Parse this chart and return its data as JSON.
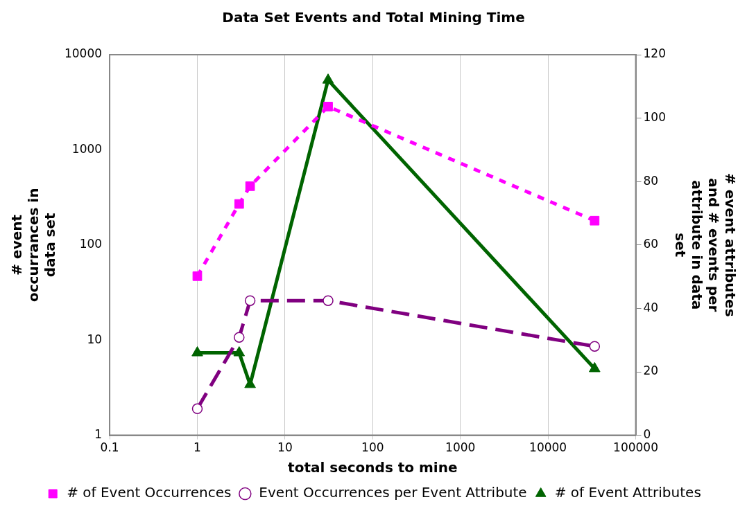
{
  "chart_data": {
    "type": "line",
    "title": "Data Set Events and Total Mining Time",
    "xlabel": "total seconds to mine",
    "ylabel": "# event occurrances in data set",
    "y2label": "# event attributes and # events per attribute in data set",
    "log": "xy",
    "xlim": [
      0.1,
      100000
    ],
    "xticks": [
      0.1,
      1,
      10,
      100,
      1000,
      10000,
      100000
    ],
    "ylim": [
      1,
      10000
    ],
    "yticks": [
      1,
      10,
      100,
      1000,
      10000
    ],
    "y2lim": [
      0,
      120
    ],
    "y2ticks": [
      0,
      20,
      40,
      60,
      80,
      100,
      120
    ],
    "grid": "x",
    "legend": "bottom",
    "series": [
      {
        "name": "# of Event Occurrences",
        "color": "#ff00ff",
        "marker": "square",
        "line_style": "dashed",
        "x": [
          1,
          3,
          4,
          31,
          34000
        ],
        "values": [
          47,
          270,
          415,
          2850,
          180
        ]
      },
      {
        "name": "Event Occurrences per Event Attribute",
        "color": "#800080",
        "marker": "circle",
        "line_style": "dashed",
        "x": [
          1,
          3,
          4,
          31,
          34000
        ],
        "values": [
          1.9,
          10.7,
          26,
          26,
          8.6
        ]
      },
      {
        "name": "# of Event Attributes",
        "color": "#006400",
        "marker": "triangle",
        "line_style": "solid",
        "axis": "y2",
        "x": [
          1,
          3,
          4,
          31,
          34000
        ],
        "values": [
          26,
          26,
          16,
          112,
          21
        ]
      }
    ]
  }
}
